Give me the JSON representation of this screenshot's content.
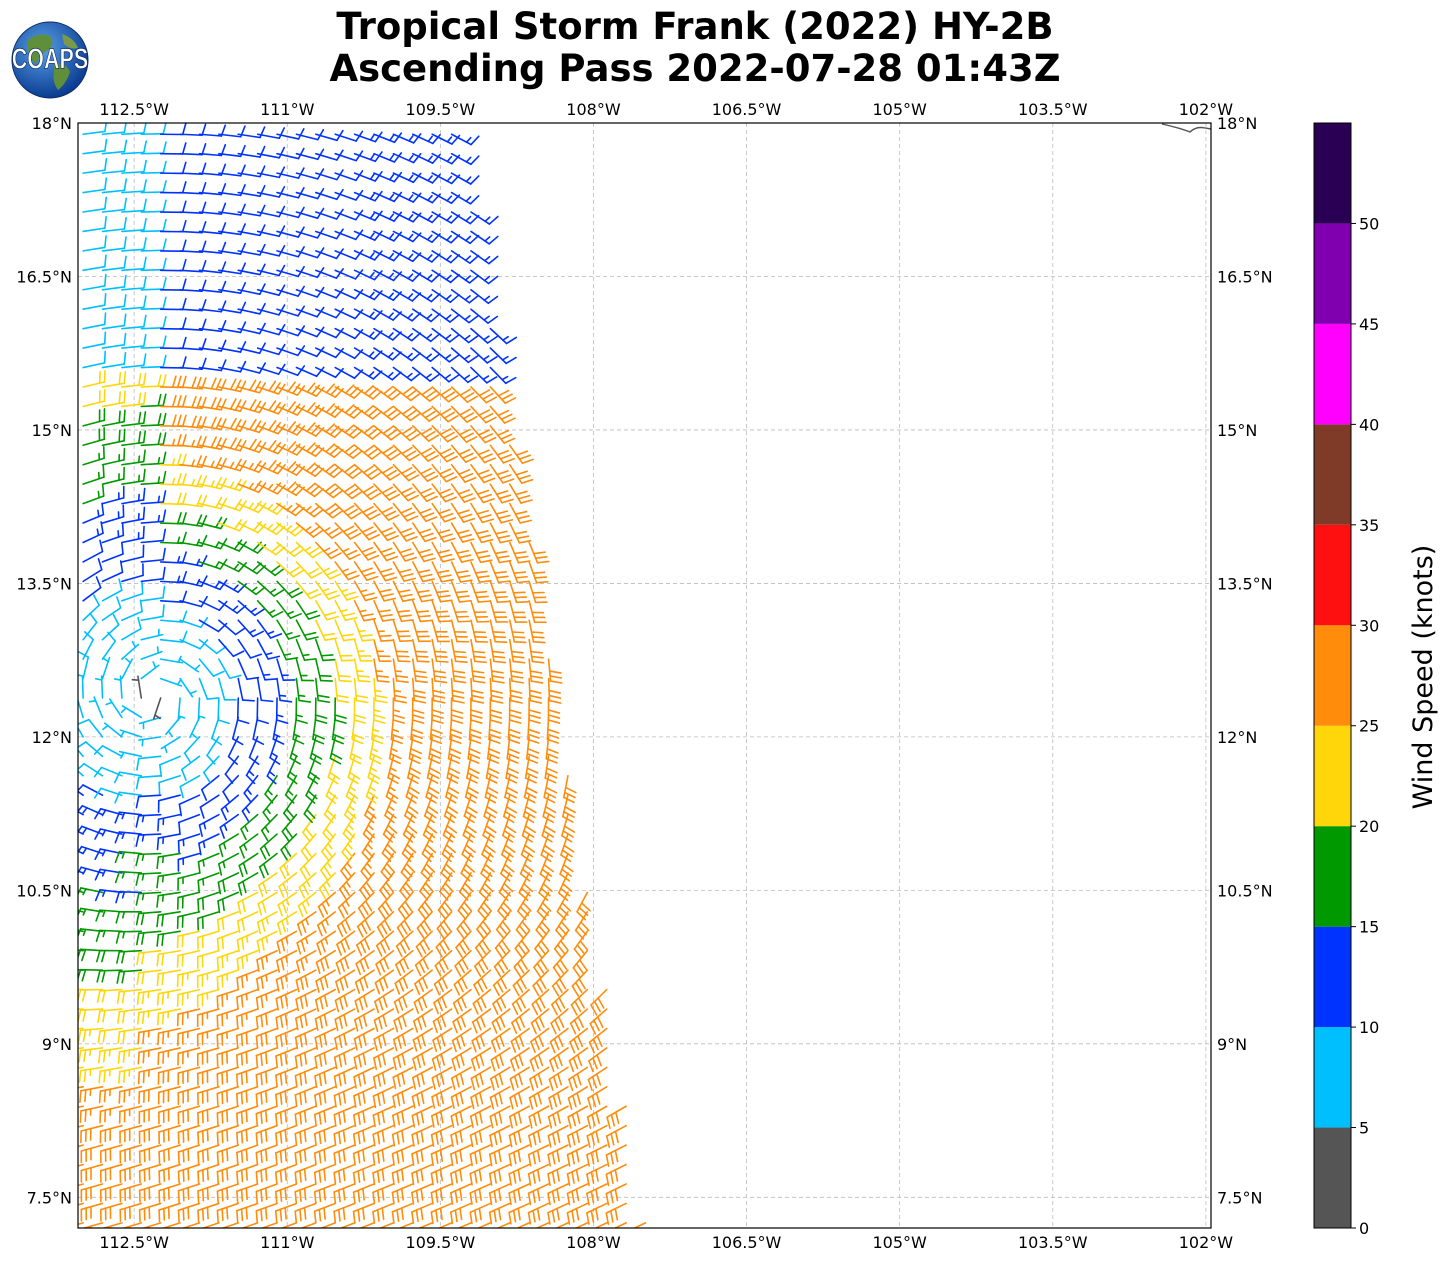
{
  "title": {
    "line1": "Tropical Storm Frank (2022) HY-2B",
    "line2": "Ascending Pass 2022-07-28 01:43Z"
  },
  "logo": {
    "text": "COAPS"
  },
  "map": {
    "lon_range": [
      -113.05,
      -101.95
    ],
    "lat_range": [
      7.2,
      18.0
    ],
    "lon_ticks": [
      {
        "value": -112.5,
        "label": "112.5°W"
      },
      {
        "value": -111.0,
        "label": "111°W"
      },
      {
        "value": -109.5,
        "label": "109.5°W"
      },
      {
        "value": -108.0,
        "label": "108°W"
      },
      {
        "value": -106.5,
        "label": "106.5°W"
      },
      {
        "value": -105.0,
        "label": "105°W"
      },
      {
        "value": -103.5,
        "label": "103.5°W"
      },
      {
        "value": -102.0,
        "label": "102°W"
      }
    ],
    "lat_ticks": [
      {
        "value": 18.0,
        "label": "18°N"
      },
      {
        "value": 16.5,
        "label": "16.5°N"
      },
      {
        "value": 15.0,
        "label": "15°N"
      },
      {
        "value": 13.5,
        "label": "13.5°N"
      },
      {
        "value": 12.0,
        "label": "12°N"
      },
      {
        "value": 10.5,
        "label": "10.5°N"
      },
      {
        "value": 9.0,
        "label": "9°N"
      },
      {
        "value": 7.5,
        "label": "7.5°N"
      }
    ],
    "gridlines": true,
    "storm_center": {
      "lon": -112.3,
      "lat": 12.4
    },
    "swath_polygon": [
      [
        -113.05,
        18.0
      ],
      [
        -109.35,
        18.0
      ],
      [
        -107.45,
        7.2
      ],
      [
        -113.05,
        7.2
      ]
    ]
  },
  "colorbar": {
    "label": "Wind Speed (knots)",
    "bins": [
      {
        "from": 0,
        "to": 5,
        "color": "#555555"
      },
      {
        "from": 5,
        "to": 10,
        "color": "#00bfff"
      },
      {
        "from": 10,
        "to": 15,
        "color": "#0033ff"
      },
      {
        "from": 15,
        "to": 20,
        "color": "#009900"
      },
      {
        "from": 20,
        "to": 25,
        "color": "#ffd60a"
      },
      {
        "from": 25,
        "to": 30,
        "color": "#ff8c0a"
      },
      {
        "from": 30,
        "to": 35,
        "color": "#ff1010"
      },
      {
        "from": 35,
        "to": 40,
        "color": "#7f3b28"
      },
      {
        "from": 40,
        "to": 45,
        "color": "#ff00ff"
      },
      {
        "from": 45,
        "to": 50,
        "color": "#8000b0"
      },
      {
        "from": 50,
        "to": 55,
        "color": "#2a0055"
      }
    ],
    "ticks": [
      "0",
      "5",
      "10",
      "15",
      "20",
      "25",
      "30",
      "35",
      "40",
      "45",
      "50"
    ]
  }
}
